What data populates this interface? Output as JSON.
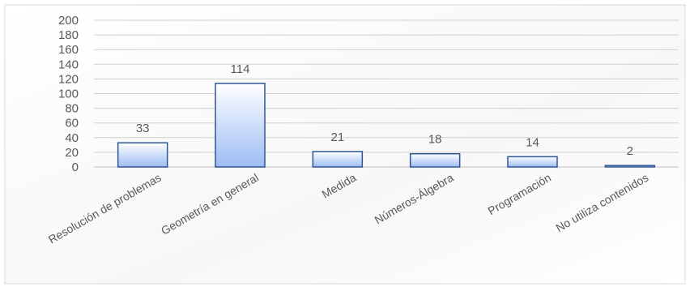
{
  "chart_data": {
    "type": "bar",
    "title": "",
    "xlabel": "",
    "ylabel": "",
    "categories": [
      "Resolución de problemas",
      "Geometría en general",
      "Medida",
      "Números-Álgebra",
      "Programación",
      "No utiliza contenidos"
    ],
    "values": [
      33,
      114,
      21,
      18,
      14,
      2
    ],
    "ylim": [
      0,
      200
    ],
    "yticks": [
      "0",
      "20",
      "40",
      "60",
      "80",
      "100",
      "120",
      "140",
      "160",
      "180",
      "200"
    ],
    "grid": true,
    "legend": "none",
    "colors": {
      "bar_top": "#ffffff",
      "bar_bottom": "#9dbdf2",
      "bar_border": "#2f5597",
      "gridline": "#d0d0d0",
      "text": "#595959",
      "frame": "#d9d9d9"
    }
  }
}
